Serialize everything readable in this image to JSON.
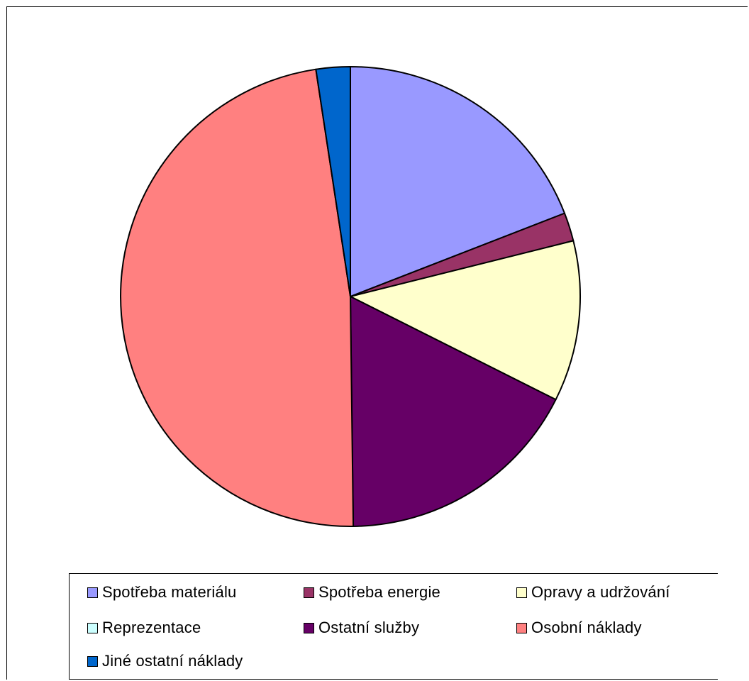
{
  "chart_data": {
    "type": "pie",
    "title": "",
    "start_angle_deg": 0,
    "direction": "clockwise",
    "slices": [
      {
        "label": "Spotřeba materiálu",
        "value": 19.1,
        "color": "#9999ff"
      },
      {
        "label": "Spotřeba energie",
        "value": 2.0,
        "color": "#993366"
      },
      {
        "label": "Opravy a udržování",
        "value": 11.3,
        "color": "#ffffcc"
      },
      {
        "label": "Reprezentace",
        "value": 0.0,
        "color": "#ccffff"
      },
      {
        "label": "Ostatní služby",
        "value": 17.4,
        "color": "#660066"
      },
      {
        "label": "Osobní náklady",
        "value": 47.8,
        "color": "#ff8080"
      },
      {
        "label": "Jiné ostatní náklady",
        "value": 2.4,
        "color": "#0066cc"
      }
    ],
    "legend": {
      "position": "bottom",
      "columns": 3
    }
  }
}
